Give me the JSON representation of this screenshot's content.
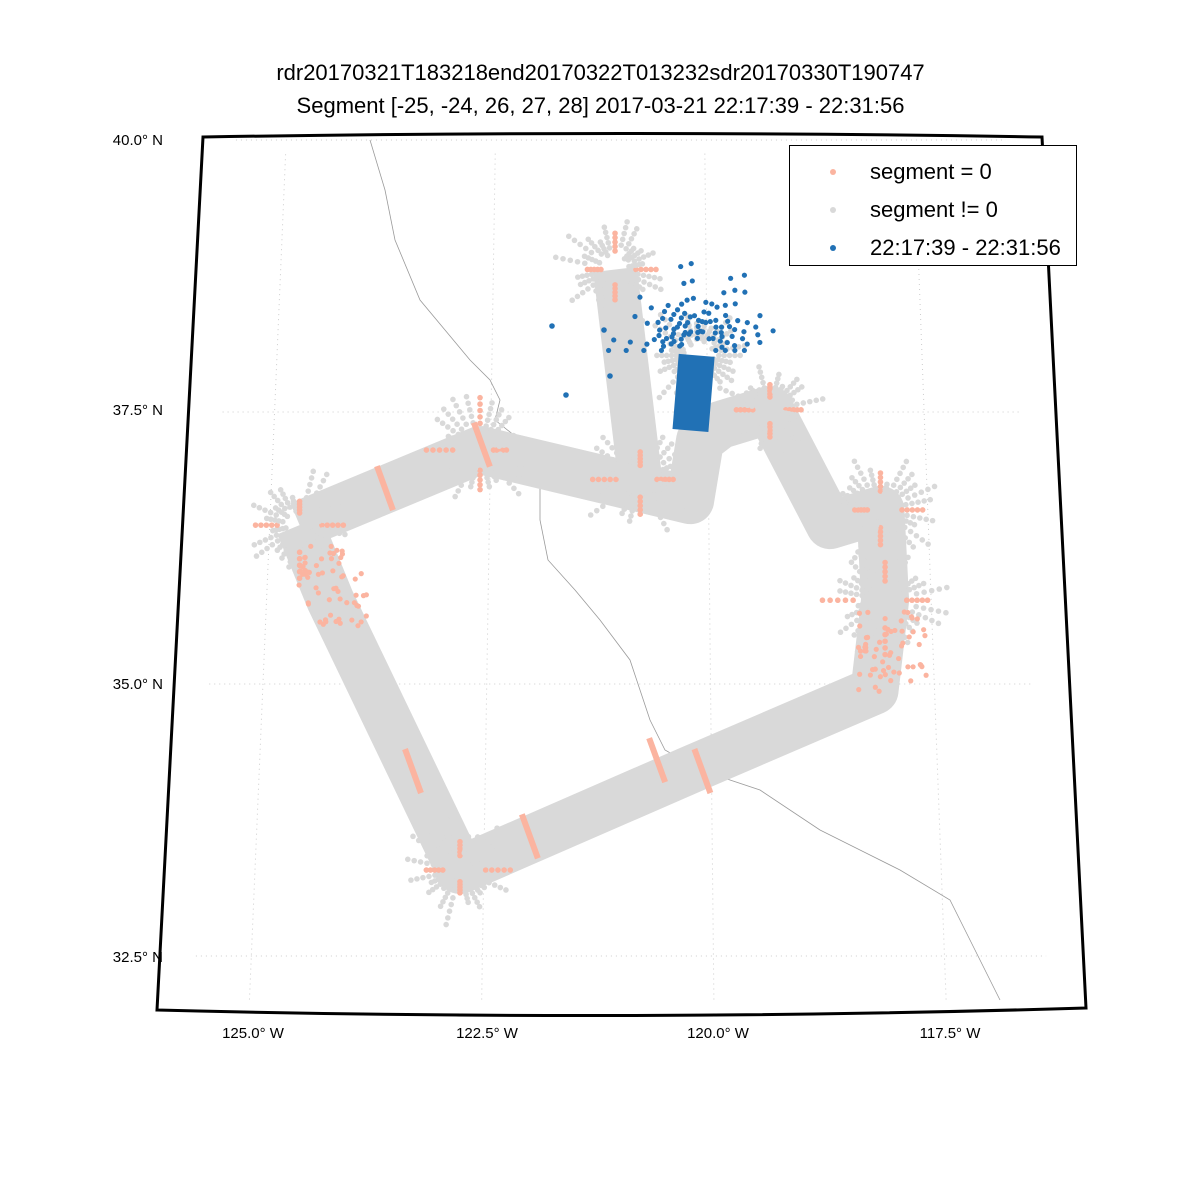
{
  "chart_data": {
    "type": "scatter",
    "title": "rdr20170321T183218end20170322T013232sdr20170330T190747",
    "subtitle": "Segment [-25, -24, 26, 27, 28] 2017-03-21 22:17:39 - 22:31:56",
    "xlabel": "",
    "ylabel": "",
    "lat_ticks": [
      {
        "value": 40.0,
        "label": "40.0° N"
      },
      {
        "value": 37.5,
        "label": "37.5° N"
      },
      {
        "value": 35.0,
        "label": "35.0° N"
      },
      {
        "value": 32.5,
        "label": "32.5° N"
      }
    ],
    "lon_ticks": [
      {
        "value": -125.0,
        "label": "125.0° W"
      },
      {
        "value": -122.5,
        "label": "122.5° W"
      },
      {
        "value": -120.0,
        "label": "120.0° W"
      },
      {
        "value": -117.5,
        "label": "117.5° W"
      }
    ],
    "grid": true,
    "legend_position": "top-right",
    "series": [
      {
        "name": "segment = 0",
        "color": "#fbb4a0"
      },
      {
        "name": "segment != 0",
        "color": "#d9d9d9"
      },
      {
        "name": "22:17:39 - 22:31:56",
        "color": "#2171b5"
      }
    ],
    "track_lonlat": [
      [
        -124.66,
        36.46
      ],
      [
        -122.62,
        37.15
      ],
      [
        -120.21,
        36.69
      ],
      [
        -120.09,
        37.24
      ],
      [
        -119.86,
        37.38
      ],
      [
        -119.28,
        37.52
      ],
      [
        -118.62,
        36.46
      ],
      [
        -118.04,
        36.6
      ],
      [
        -118.02,
        35.77
      ],
      [
        -118.17,
        34.94
      ],
      [
        -120.24,
        34.21
      ],
      [
        -122.76,
        33.29
      ],
      [
        -124.28,
        35.77
      ],
      [
        -124.66,
        36.46
      ]
    ],
    "branch_lonlat": [
      [
        -121.07,
        38.81
      ],
      [
        -120.78,
        36.88
      ]
    ],
    "blue_column_lonlat": [
      [
        -120.12,
        38.02
      ],
      [
        -120.2,
        37.33
      ]
    ],
    "fan_centers_lonlat": [
      [
        -124.66,
        36.46
      ],
      [
        -121.07,
        38.81
      ],
      [
        -122.62,
        37.15
      ],
      [
        -120.78,
        36.88
      ],
      [
        -119.28,
        37.52
      ],
      [
        -118.04,
        36.6
      ],
      [
        -118.02,
        35.77
      ],
      [
        -122.76,
        33.29
      ],
      [
        -120.12,
        38.02
      ]
    ],
    "segment0_bands_lonlat": [
      [
        -123.7,
        36.8
      ],
      [
        -122.6,
        37.2
      ],
      [
        -123.3,
        34.2
      ],
      [
        -122.0,
        33.6
      ],
      [
        -120.6,
        34.3
      ],
      [
        -120.1,
        34.2
      ],
      [
        -124.3,
        35.9
      ],
      [
        -118.0,
        35.3
      ]
    ]
  }
}
